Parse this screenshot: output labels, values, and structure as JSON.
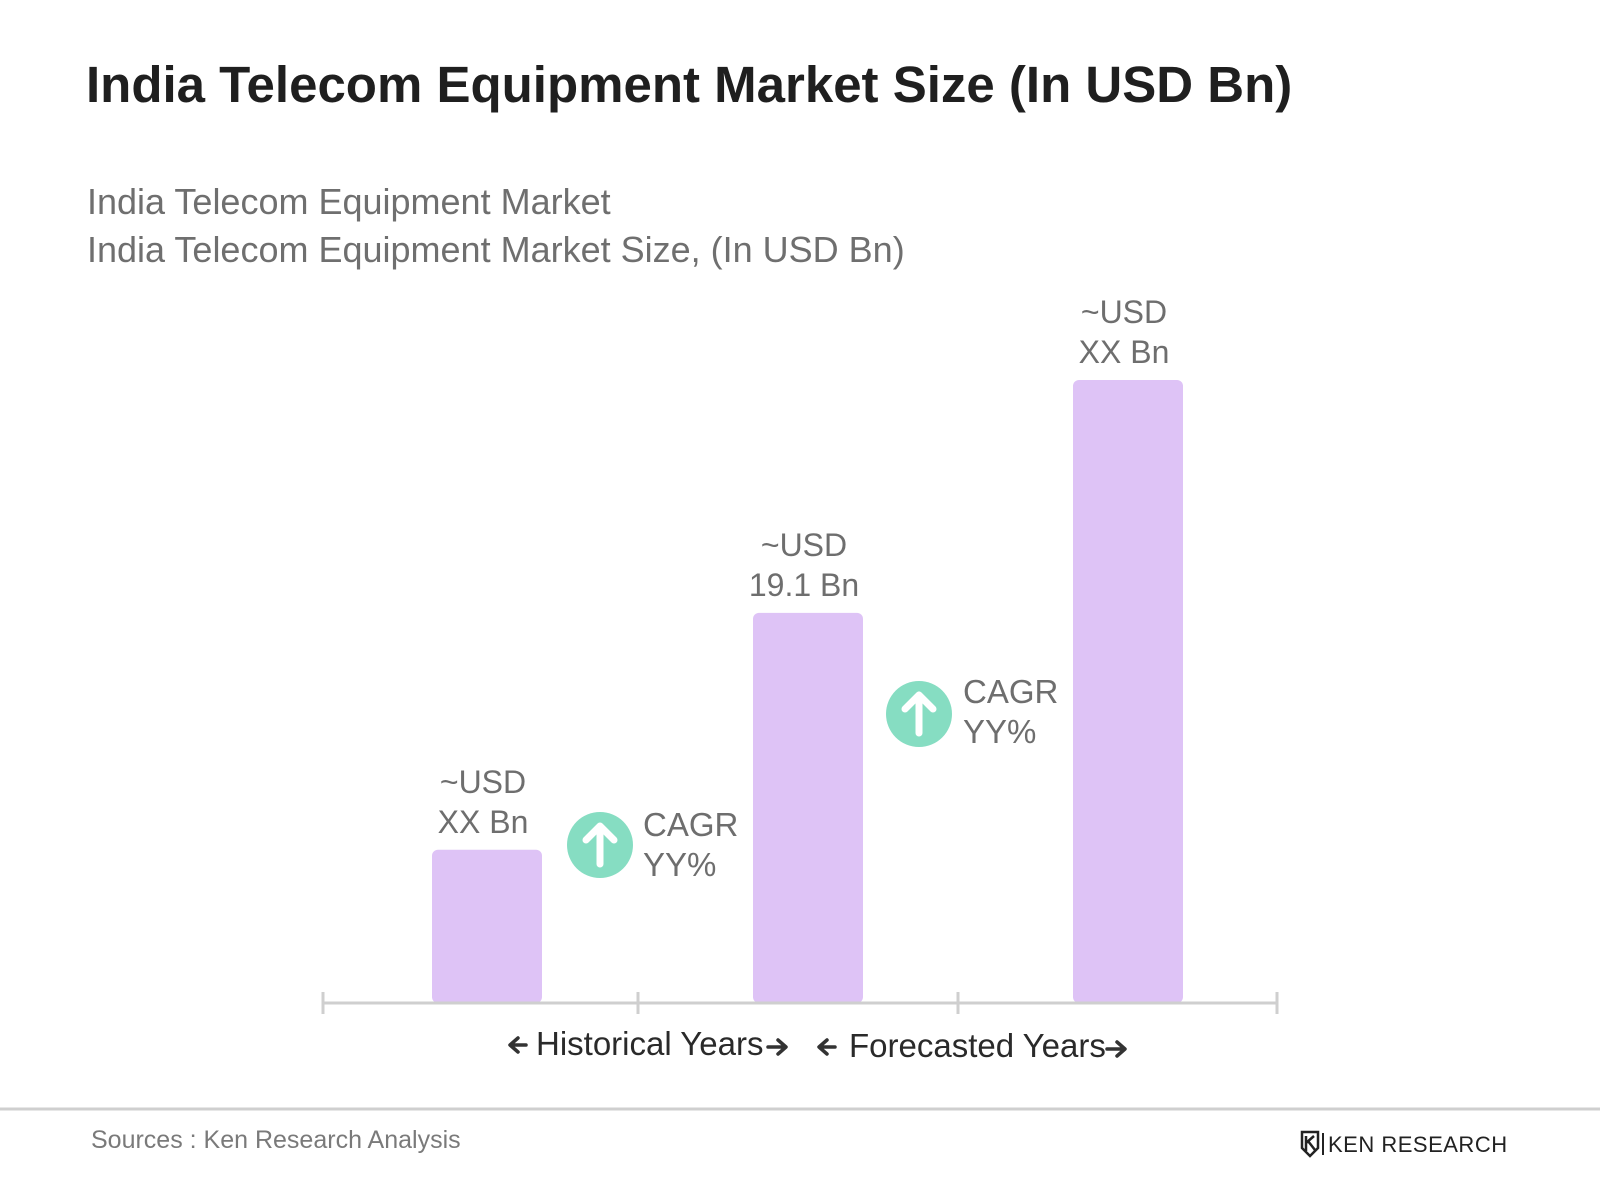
{
  "chart_data": {
    "type": "bar",
    "title": "India Telecom Equipment Market Size (In USD Bn)",
    "subtitle_lines": [
      "India Telecom Equipment Market",
      "India Telecom Equipment Market Size, (In USD Bn)"
    ],
    "categories": [
      "",
      "",
      ""
    ],
    "values": [
      7.5,
      19.1,
      30.5
    ],
    "value_labels": [
      {
        "line1": "~USD",
        "line2": "XX Bn"
      },
      {
        "line1": "~USD",
        "line2": "19.1 Bn"
      },
      {
        "line1": "~USD",
        "line2": "XX Bn"
      }
    ],
    "cagr_labels": [
      {
        "line1": "CAGR",
        "line2": "YY%"
      },
      {
        "line1": "CAGR",
        "line2": "YY%"
      }
    ],
    "periods": [
      {
        "label": "Historical Years"
      },
      {
        "label": "Forecasted Years"
      }
    ],
    "bar_color": "#dec3f6",
    "cagr_color": "#86ddc2",
    "grid": false,
    "legend": "none"
  },
  "footer": {
    "source": "Sources : Ken Research Analysis",
    "brand": "KEN RESEARCH"
  },
  "icons": {
    "cagr": "arrow-up-circle-icon",
    "period_arrows": [
      "arrow-left-icon",
      "arrow-right-icon"
    ],
    "logo": "ken-research-logo-icon"
  }
}
